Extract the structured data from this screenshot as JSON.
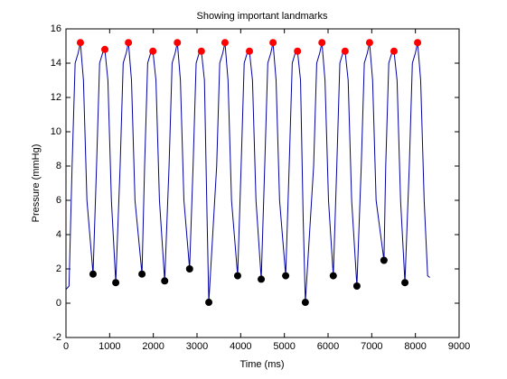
{
  "chart_data": {
    "type": "line",
    "title": "Showing important landmarks",
    "xlabel": "Time (ms)",
    "ylabel": "Pressure (mmHg)",
    "xlim": [
      0,
      9000
    ],
    "ylim": [
      -2,
      16
    ],
    "xticks": [
      0,
      1000,
      2000,
      3000,
      4000,
      5000,
      6000,
      7000,
      8000,
      9000
    ],
    "yticks": [
      -2,
      0,
      2,
      4,
      6,
      8,
      10,
      12,
      14,
      16
    ],
    "grid": false,
    "series": [
      {
        "mode": "line",
        "color": "#0000a0",
        "x": [
          0,
          70,
          140,
          210,
          280,
          330,
          400,
          480,
          620,
          700,
          770,
          840,
          890,
          960,
          1040,
          1140,
          1240,
          1310,
          1380,
          1430,
          1500,
          1580,
          1740,
          1800,
          1870,
          1940,
          1990,
          2060,
          2140,
          2260,
          2360,
          2430,
          2500,
          2550,
          2620,
          2700,
          2830,
          2910,
          2980,
          3050,
          3100,
          3170,
          3230,
          3270,
          3450,
          3520,
          3590,
          3640,
          3710,
          3790,
          3930,
          4010,
          4080,
          4150,
          4200,
          4270,
          4350,
          4470,
          4550,
          4620,
          4690,
          4740,
          4810,
          4890,
          5030,
          5110,
          5180,
          5250,
          5300,
          5370,
          5430,
          5480,
          5670,
          5740,
          5810,
          5860,
          5930,
          6010,
          6120,
          6200,
          6270,
          6340,
          6390,
          6460,
          6540,
          6660,
          6760,
          6830,
          6900,
          6950,
          7020,
          7100,
          7280,
          7320,
          7390,
          7460,
          7510,
          7580,
          7660,
          7760,
          7860,
          7930,
          8000,
          8050,
          8120,
          8200,
          8280,
          8330
        ],
        "values": [
          0.8,
          1.0,
          8,
          14,
          14.6,
          15.2,
          13,
          6,
          1.7,
          8,
          14,
          14.6,
          14.8,
          13,
          6,
          1.2,
          8,
          14,
          14.6,
          15.2,
          13,
          6,
          1.7,
          8,
          14,
          14.6,
          14.7,
          13,
          6,
          1.3,
          8,
          14,
          14.6,
          15.2,
          13,
          6,
          2.0,
          8,
          14,
          14.6,
          14.7,
          13,
          5,
          0.05,
          8,
          14,
          14.6,
          15.2,
          13,
          6,
          1.6,
          8,
          14,
          14.6,
          14.7,
          13,
          6,
          1.4,
          8,
          14,
          14.6,
          15.2,
          13,
          6,
          1.6,
          8,
          14,
          14.6,
          14.7,
          13,
          5,
          0.05,
          8,
          14,
          14.6,
          15.2,
          13,
          6,
          1.6,
          8,
          14,
          14.6,
          14.7,
          13,
          6,
          1.0,
          8,
          14,
          14.6,
          15.2,
          13,
          6,
          2.5,
          8,
          14,
          14.6,
          14.7,
          13,
          6,
          1.2,
          8,
          14,
          14.6,
          15.2,
          13,
          6,
          1.6,
          1.5
        ]
      },
      {
        "mode": "markers",
        "color": "#ff0000",
        "x": [
          330,
          890,
          1430,
          1990,
          2550,
          3100,
          3640,
          4200,
          4740,
          5300,
          5860,
          6390,
          6950,
          7510,
          8050
        ],
        "values": [
          15.2,
          14.8,
          15.2,
          14.7,
          15.2,
          14.7,
          15.2,
          14.7,
          15.2,
          14.7,
          15.2,
          14.7,
          15.2,
          14.7,
          15.2
        ]
      },
      {
        "mode": "markers",
        "color": "#000000",
        "x": [
          620,
          1140,
          1740,
          2260,
          2830,
          3270,
          3930,
          4470,
          5030,
          5480,
          6120,
          6660,
          7280,
          7760
        ],
        "values": [
          1.7,
          1.2,
          1.7,
          1.3,
          2.0,
          0.05,
          1.6,
          1.4,
          1.6,
          0.05,
          1.6,
          1.0,
          2.5,
          1.2
        ]
      }
    ]
  }
}
